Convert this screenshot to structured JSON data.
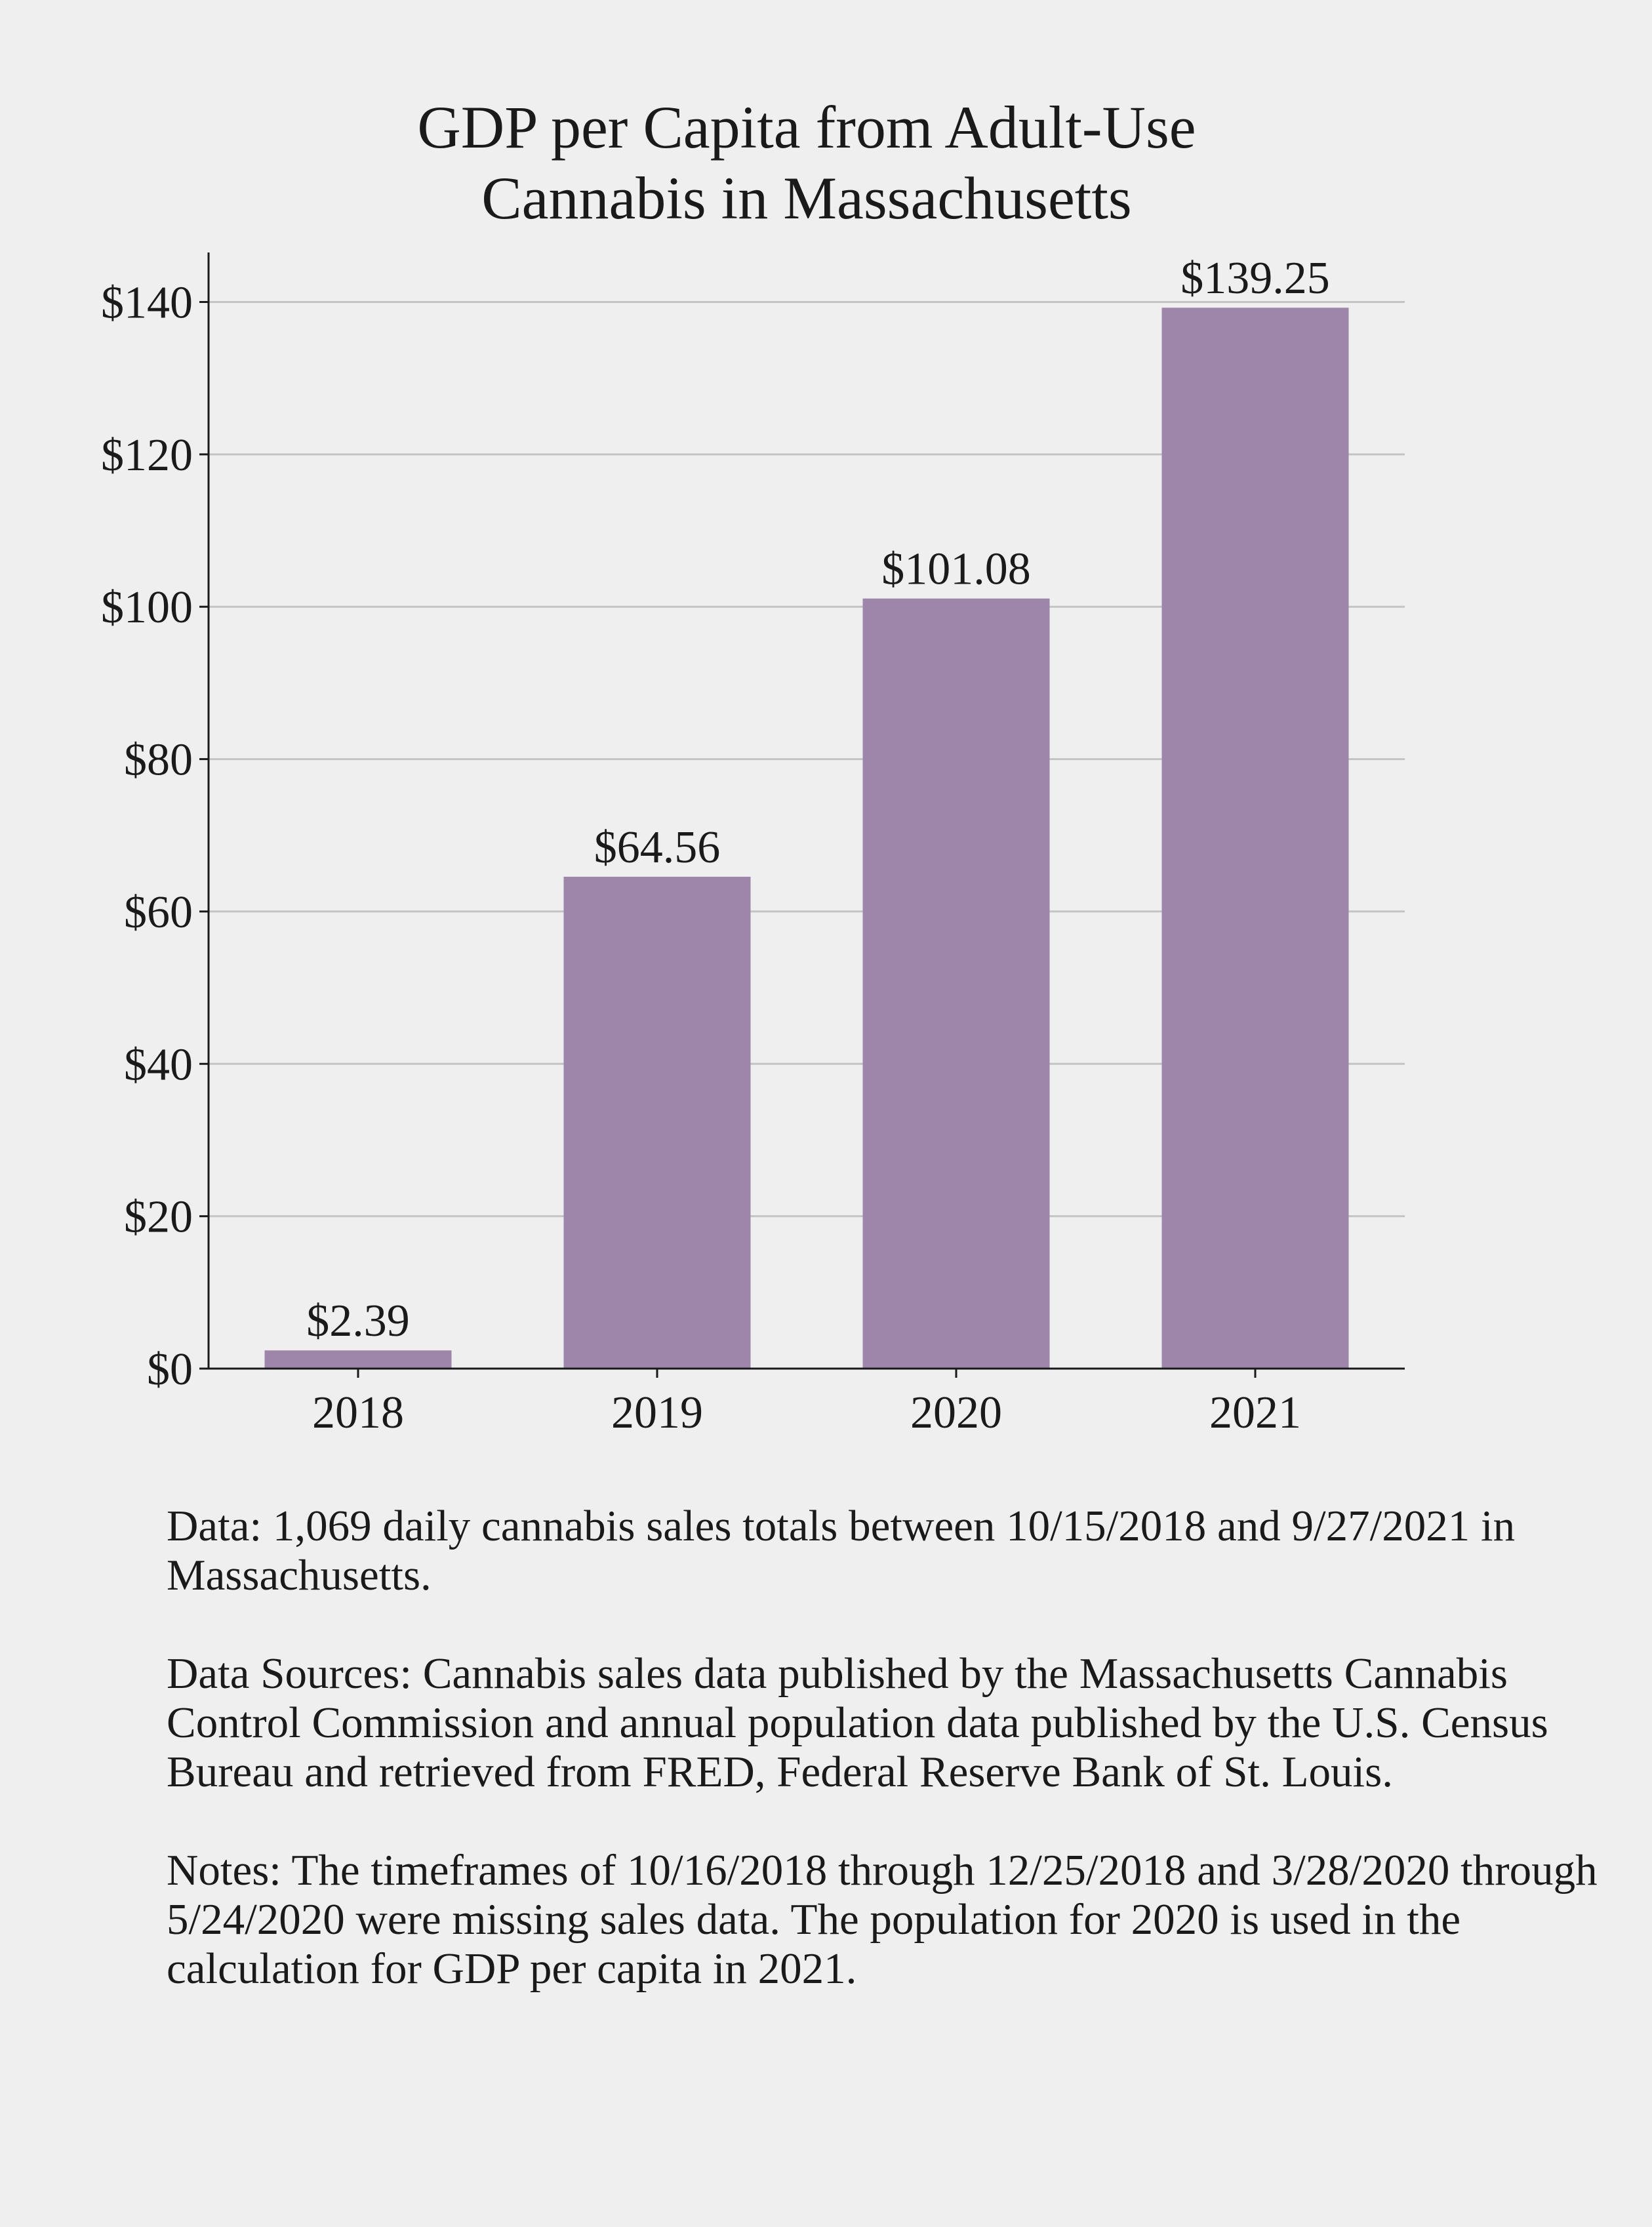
{
  "chart_data": {
    "type": "bar",
    "title_lines": [
      "GDP per Capita from Adult-Use",
      "Cannabis in Massachusetts"
    ],
    "categories": [
      "2018",
      "2019",
      "2020",
      "2021"
    ],
    "values": [
      2.39,
      64.56,
      101.08,
      139.25
    ],
    "value_labels": [
      "$2.39",
      "$64.56",
      "$101.08",
      "$139.25"
    ],
    "yticks": [
      0,
      20,
      40,
      60,
      80,
      100,
      120,
      140
    ],
    "ytick_labels": [
      "$0",
      "$20",
      "$40",
      "$60",
      "$80",
      "$100",
      "$120",
      "$140"
    ],
    "ylim": [
      0,
      146.5
    ],
    "xlabel": "",
    "ylabel": "",
    "grid": true,
    "bar_color": "#9e86ab"
  },
  "notes": {
    "data": "Data: 1,069 daily cannabis sales totals between 10/15/2018 and 9/27/2021 in Massachusetts.",
    "sources": "Data Sources: Cannabis sales data published by the Massachusetts Cannabis Control Commission and annual population data published by the U.S. Census Bureau and retrieved from FRED, Federal Reserve Bank of St. Louis.",
    "notes": "Notes: The timeframes of 10/16/2018 through 12/25/2018 and 3/28/2020 through 5/24/2020 were missing sales data. The population for 2020 is used in the calculation for GDP per capita in 2021."
  }
}
